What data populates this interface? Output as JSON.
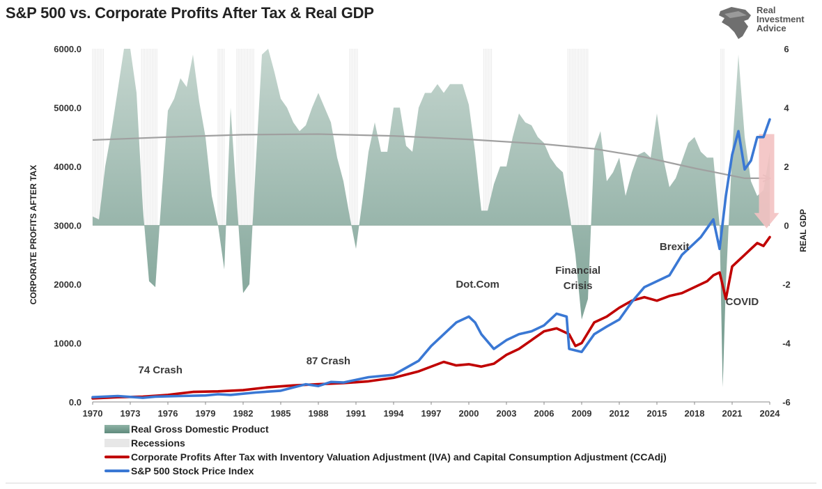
{
  "title": "S&P 500 vs. Corporate Profits After Tax & Real GDP",
  "logo": {
    "line1": "Real",
    "line2": "Investment",
    "line3": "Advice"
  },
  "colors": {
    "gdp_fill_top": "#c5d6cf",
    "gdp_fill_bottom": "#6f978a",
    "recession": "#e9e9e9",
    "profits": "#c00000",
    "sp500": "#3a78d4",
    "trend": "#a0a0a0",
    "arrow": "#f3c2c2"
  },
  "chart_data": {
    "type": "line",
    "title": "S&P 500 vs. Corporate Profits After Tax & Real GDP",
    "ylabel": "CORPORATE PROFITS AFTER TAX",
    "y2label": "REAL GDP",
    "xlim": [
      1970,
      2024
    ],
    "ylim": [
      0,
      6000
    ],
    "y2lim": [
      -6,
      6
    ],
    "x_ticks": [
      "1970",
      "1973",
      "1976",
      "1979",
      "1982",
      "1985",
      "1988",
      "1991",
      "1994",
      "1997",
      "2000",
      "2003",
      "2006",
      "2009",
      "2012",
      "2015",
      "2018",
      "2021",
      "2024"
    ],
    "y_ticks": [
      "0.0",
      "1000.0",
      "2000.0",
      "3000.0",
      "4000.0",
      "5000.0",
      "6000.0"
    ],
    "y2_ticks": [
      "-6",
      "-4",
      "-2",
      "0",
      "2",
      "4",
      "6"
    ],
    "series": [
      {
        "name": "Real Gross Domestic Product",
        "axis": "right",
        "type": "area",
        "x": [
          1970,
          1970.5,
          1971,
          1971.5,
          1972,
          1972.5,
          1973,
          1973.5,
          1974,
          1974.5,
          1975,
          1975.5,
          1976,
          1976.5,
          1977,
          1977.5,
          1978,
          1978.5,
          1979,
          1979.5,
          1980,
          1980.5,
          1981,
          1981.5,
          1982,
          1982.5,
          1983,
          1983.5,
          1984,
          1984.5,
          1985,
          1985.5,
          1986,
          1986.5,
          1987,
          1987.5,
          1988,
          1988.5,
          1989,
          1989.5,
          1990,
          1990.5,
          1991,
          1991.5,
          1992,
          1992.5,
          1993,
          1993.5,
          1994,
          1994.5,
          1995,
          1995.5,
          1996,
          1996.5,
          1997,
          1997.5,
          1998,
          1998.5,
          1999,
          1999.5,
          2000,
          2000.5,
          2001,
          2001.5,
          2002,
          2002.5,
          2003,
          2003.5,
          2004,
          2004.5,
          2005,
          2005.5,
          2006,
          2006.5,
          2007,
          2007.5,
          2008,
          2008.5,
          2009,
          2009.5,
          2010,
          2010.5,
          2011,
          2011.5,
          2012,
          2012.5,
          2013,
          2013.5,
          2014,
          2014.5,
          2015,
          2015.5,
          2016,
          2016.5,
          2017,
          2017.5,
          2018,
          2018.5,
          2019,
          2019.5,
          2020,
          2020.25,
          2020.5,
          2021,
          2021.5,
          2022,
          2022.5,
          2023,
          2023.5,
          2024
        ],
        "values": [
          0.3,
          0.2,
          2.0,
          3.2,
          4.6,
          6.5,
          6.3,
          4.5,
          0.6,
          -1.9,
          -2.1,
          1.0,
          3.9,
          4.3,
          5.0,
          4.7,
          5.8,
          4.2,
          3.0,
          1.0,
          0.0,
          -1.5,
          4.0,
          0.8,
          -2.3,
          -2.0,
          2.0,
          5.8,
          7.2,
          5.2,
          4.3,
          4.0,
          3.5,
          3.2,
          3.4,
          4.0,
          4.5,
          4.0,
          3.5,
          2.3,
          1.5,
          0.3,
          -0.8,
          0.8,
          2.5,
          3.5,
          2.5,
          2.5,
          4.0,
          4.0,
          2.7,
          2.5,
          4.0,
          4.5,
          4.5,
          4.8,
          4.5,
          4.8,
          4.8,
          4.8,
          4.1,
          2.5,
          0.5,
          0.5,
          1.4,
          2.0,
          2.0,
          3.0,
          3.8,
          3.5,
          3.4,
          3.0,
          2.8,
          2.3,
          2.0,
          1.8,
          0.5,
          -1.0,
          -3.2,
          -2.5,
          2.6,
          3.2,
          1.5,
          1.8,
          2.3,
          1.0,
          1.8,
          2.4,
          2.5,
          2.3,
          3.8,
          2.3,
          1.3,
          1.6,
          2.2,
          2.8,
          3.0,
          2.5,
          2.3,
          2.3,
          0.0,
          -5.5,
          -2.0,
          2.5,
          5.8,
          3.0,
          1.5,
          1.0,
          1.2,
          2.5
        ],
        "data_label": "Real Gross Domestic Product"
      },
      {
        "name": "Recessions",
        "type": "band",
        "ranges": [
          [
            1970,
            1970.9
          ],
          [
            1973.9,
            1975.2
          ],
          [
            1980,
            1980.5
          ],
          [
            1981.5,
            1982.9
          ],
          [
            1990.5,
            1991.2
          ],
          [
            2001.2,
            2001.9
          ],
          [
            2007.9,
            2009.5
          ],
          [
            2020.1,
            2020.4
          ]
        ]
      },
      {
        "name": "Corporate Profits After Tax with Inventory Valuation Adjustment (IVA) and Capital Consumption Adjustment (CCAdj)",
        "axis": "left",
        "x": [
          1970,
          1972,
          1974,
          1976,
          1978,
          1980,
          1982,
          1984,
          1986,
          1988,
          1990,
          1992,
          1994,
          1996,
          1998,
          1999,
          2000,
          2001,
          2002,
          2003,
          2004,
          2005,
          2006,
          2007,
          2008,
          2008.5,
          2009,
          2010,
          2011,
          2012,
          2013,
          2014,
          2015,
          2016,
          2017,
          2018,
          2019,
          2019.5,
          2020,
          2020.5,
          2021,
          2021.5,
          2022,
          2022.5,
          2023,
          2023.5,
          2024
        ],
        "values": [
          60,
          80,
          90,
          120,
          170,
          180,
          200,
          250,
          280,
          300,
          320,
          350,
          410,
          520,
          680,
          620,
          640,
          600,
          650,
          800,
          900,
          1050,
          1200,
          1250,
          1150,
          950,
          1000,
          1350,
          1450,
          1600,
          1720,
          1780,
          1720,
          1800,
          1850,
          1950,
          2050,
          2150,
          2200,
          1750,
          2300,
          2400,
          2500,
          2600,
          2700,
          2650,
          2800
        ],
        "data_label": "Corporate Profits After Tax with Inventory Valuation Adjustment (IVA) and Capital Consumption Adjustment (CCAdj)"
      },
      {
        "name": "S&P 500 Stock Price Index",
        "axis": "left",
        "x": [
          1970,
          1972,
          1974,
          1975,
          1977,
          1979,
          1980,
          1981,
          1982,
          1983,
          1985,
          1987,
          1988,
          1989,
          1990,
          1992,
          1994,
          1995,
          1996,
          1997,
          1998,
          1999,
          2000,
          2000.5,
          2001,
          2002,
          2003,
          2004,
          2005,
          2006,
          2007,
          2007.8,
          2008,
          2009,
          2010,
          2011,
          2012,
          2013,
          2014,
          2015,
          2016,
          2017,
          2018,
          2018.5,
          2019,
          2019.5,
          2020,
          2020.5,
          2021,
          2021.5,
          2022,
          2022.5,
          2023,
          2023.5,
          2024
        ],
        "values": [
          80,
          100,
          70,
          90,
          100,
          110,
          130,
          120,
          140,
          160,
          190,
          300,
          270,
          340,
          330,
          420,
          460,
          580,
          700,
          950,
          1150,
          1350,
          1450,
          1350,
          1150,
          900,
          1050,
          1150,
          1200,
          1300,
          1500,
          1450,
          900,
          850,
          1150,
          1280,
          1400,
          1700,
          1950,
          2050,
          2150,
          2500,
          2700,
          2800,
          2950,
          3100,
          2600,
          3500,
          4200,
          4600,
          3950,
          4100,
          4500,
          4500,
          4800
        ],
        "data_label": "S&P 500 Stock Price Index"
      },
      {
        "name": "Trend",
        "axis": "left",
        "x": [
          1970,
          1976,
          1982,
          1988,
          1994,
          2000,
          2006,
          2010,
          2014,
          2018,
          2022,
          2024
        ],
        "values": [
          4450,
          4500,
          4540,
          4550,
          4520,
          4460,
          4380,
          4300,
          4160,
          3970,
          3800,
          3800
        ]
      }
    ],
    "annotations": [
      "74 Crash",
      "87 Crash",
      "Dot.Com",
      "Financial\nCrisis",
      "Brexit",
      "COVID"
    ],
    "legend": "bottom-left",
    "grid": false
  },
  "annotations_text": {
    "crash74": "74 Crash",
    "crash87": "87 Crash",
    "dotcom": "Dot.Com",
    "financial1": "Financial",
    "financial2": "Crisis",
    "brexit": "Brexit",
    "covid": "COVID"
  },
  "legend": {
    "gdp": "Real Gross Domestic Product",
    "recessions": "Recessions",
    "profits": "Corporate Profits After Tax with Inventory Valuation Adjustment (IVA) and Capital Consumption Adjustment (CCAdj)",
    "sp500": "S&P 500 Stock Price Index"
  },
  "axis_titles": {
    "left": "CORPORATE PROFITS AFTER TAX",
    "right": "REAL GDP"
  }
}
